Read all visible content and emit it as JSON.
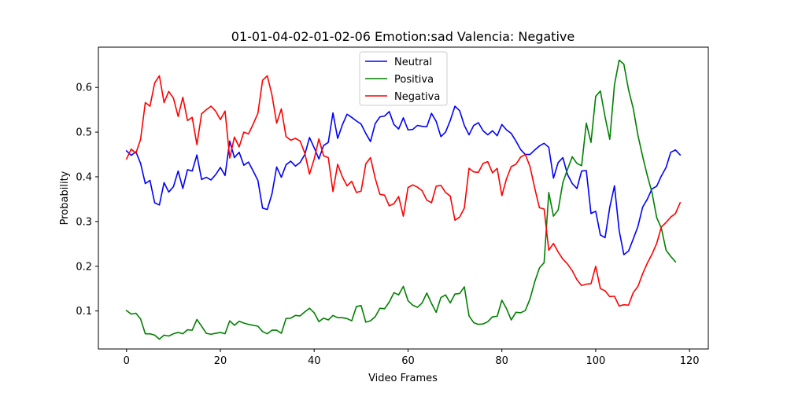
{
  "chart_data": {
    "type": "line",
    "title": "01-01-04-02-01-02-06 Emotion:sad Valencia: Negative",
    "xlabel": "Video Frames",
    "ylabel": "Probability",
    "xlim": [
      -6,
      124
    ],
    "ylim": [
      0.015,
      0.69
    ],
    "xticks": [
      0,
      20,
      40,
      60,
      80,
      100,
      120
    ],
    "yticks": [
      0.1,
      0.2,
      0.3,
      0.4,
      0.5,
      0.6
    ],
    "ytick_labels": [
      "0.1",
      "0.2",
      "0.3",
      "0.4",
      "0.5",
      "0.6"
    ],
    "grid": false,
    "legend_position": "upper-center",
    "x_start": 0,
    "series": [
      {
        "name": "Neutral",
        "color": "#0000ff",
        "values": [
          0.458,
          0.448,
          0.456,
          0.43,
          0.385,
          0.392,
          0.342,
          0.337,
          0.387,
          0.366,
          0.378,
          0.413,
          0.374,
          0.416,
          0.413,
          0.449,
          0.394,
          0.399,
          0.393,
          0.405,
          0.421,
          0.403,
          0.48,
          0.443,
          0.455,
          0.426,
          0.433,
          0.413,
          0.392,
          0.33,
          0.327,
          0.362,
          0.422,
          0.399,
          0.427,
          0.435,
          0.424,
          0.432,
          0.45,
          0.488,
          0.465,
          0.44,
          0.47,
          0.477,
          0.543,
          0.486,
          0.516,
          0.54,
          0.533,
          0.525,
          0.518,
          0.497,
          0.479,
          0.519,
          0.534,
          0.536,
          0.546,
          0.517,
          0.507,
          0.532,
          0.505,
          0.506,
          0.515,
          0.513,
          0.512,
          0.542,
          0.524,
          0.49,
          0.5,
          0.526,
          0.558,
          0.548,
          0.515,
          0.494,
          0.515,
          0.521,
          0.503,
          0.494,
          0.503,
          0.492,
          0.517,
          0.505,
          0.497,
          0.48,
          0.461,
          0.45,
          0.45,
          0.46,
          0.469,
          0.475,
          0.466,
          0.397,
          0.432,
          0.443,
          0.405,
          0.385,
          0.374,
          0.413,
          0.414,
          0.318,
          0.323,
          0.27,
          0.264,
          0.332,
          0.38,
          0.28,
          0.226,
          0.234,
          0.261,
          0.289,
          0.332,
          0.35,
          0.373,
          0.379,
          0.402,
          0.421,
          0.455,
          0.46,
          0.449
        ]
      },
      {
        "name": "Positiva",
        "color": "#008000",
        "values": [
          0.101,
          0.093,
          0.095,
          0.082,
          0.049,
          0.049,
          0.046,
          0.037,
          0.046,
          0.044,
          0.049,
          0.052,
          0.049,
          0.058,
          0.057,
          0.081,
          0.066,
          0.05,
          0.048,
          0.05,
          0.052,
          0.049,
          0.078,
          0.068,
          0.077,
          0.073,
          0.07,
          0.068,
          0.066,
          0.054,
          0.049,
          0.057,
          0.057,
          0.05,
          0.083,
          0.084,
          0.09,
          0.089,
          0.098,
          0.106,
          0.096,
          0.076,
          0.084,
          0.08,
          0.09,
          0.085,
          0.085,
          0.083,
          0.078,
          0.11,
          0.112,
          0.075,
          0.078,
          0.087,
          0.106,
          0.105,
          0.12,
          0.141,
          0.136,
          0.155,
          0.123,
          0.113,
          0.108,
          0.118,
          0.14,
          0.117,
          0.097,
          0.13,
          0.136,
          0.118,
          0.138,
          0.139,
          0.154,
          0.089,
          0.074,
          0.07,
          0.071,
          0.076,
          0.087,
          0.088,
          0.124,
          0.105,
          0.08,
          0.097,
          0.096,
          0.101,
          0.127,
          0.165,
          0.196,
          0.208,
          0.365,
          0.312,
          0.326,
          0.387,
          0.417,
          0.445,
          0.43,
          0.425,
          0.52,
          0.477,
          0.58,
          0.592,
          0.534,
          0.484,
          0.606,
          0.661,
          0.652,
          0.595,
          0.553,
          0.493,
          0.446,
          0.403,
          0.365,
          0.309,
          0.285,
          0.236,
          0.222,
          0.21
        ]
      },
      {
        "name": "Negativa",
        "color": "#ff0000",
        "values": [
          0.44,
          0.462,
          0.453,
          0.484,
          0.566,
          0.558,
          0.61,
          0.626,
          0.566,
          0.591,
          0.576,
          0.535,
          0.578,
          0.526,
          0.533,
          0.472,
          0.541,
          0.55,
          0.558,
          0.547,
          0.528,
          0.547,
          0.442,
          0.489,
          0.467,
          0.5,
          0.496,
          0.518,
          0.542,
          0.616,
          0.626,
          0.583,
          0.52,
          0.552,
          0.49,
          0.482,
          0.486,
          0.48,
          0.453,
          0.406,
          0.44,
          0.485,
          0.447,
          0.443,
          0.367,
          0.428,
          0.4,
          0.38,
          0.39,
          0.365,
          0.368,
          0.429,
          0.443,
          0.397,
          0.361,
          0.359,
          0.335,
          0.34,
          0.356,
          0.312,
          0.376,
          0.382,
          0.377,
          0.369,
          0.348,
          0.342,
          0.379,
          0.381,
          0.365,
          0.357,
          0.303,
          0.31,
          0.33,
          0.419,
          0.411,
          0.41,
          0.43,
          0.434,
          0.409,
          0.419,
          0.358,
          0.396,
          0.423,
          0.428,
          0.444,
          0.45,
          0.423,
          0.375,
          0.331,
          0.328,
          0.236,
          0.251,
          0.232,
          0.216,
          0.205,
          0.19,
          0.17,
          0.157,
          0.16,
          0.161,
          0.2,
          0.15,
          0.145,
          0.132,
          0.133,
          0.111,
          0.114,
          0.113,
          0.141,
          0.155,
          0.183,
          0.207,
          0.227,
          0.251,
          0.288,
          0.298,
          0.31,
          0.318,
          0.342
        ]
      }
    ]
  }
}
